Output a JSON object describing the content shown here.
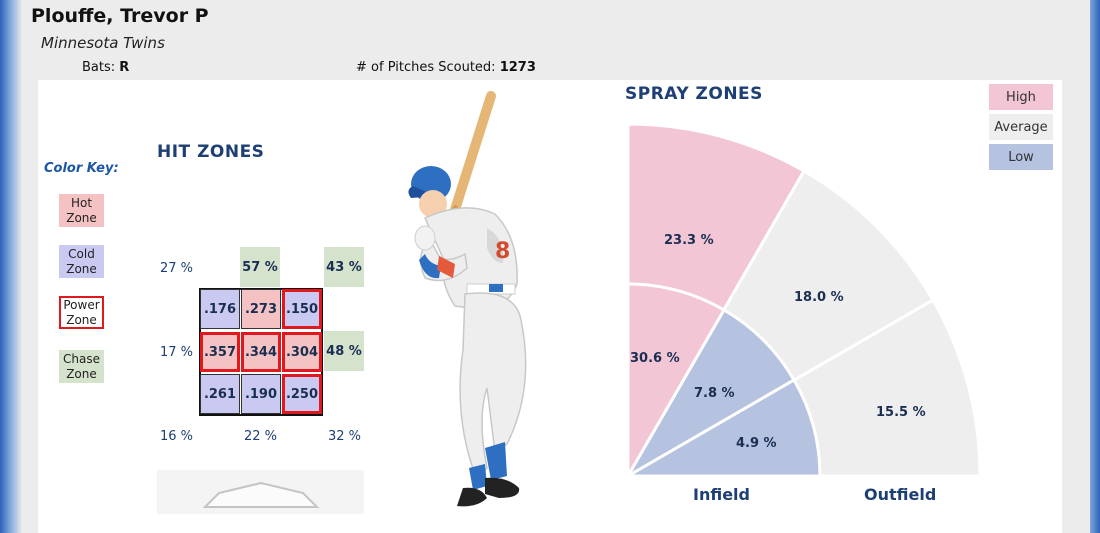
{
  "player": {
    "name": "Plouffe, Trevor P",
    "team": "Minnesota Twins",
    "bats_label": "Bats:",
    "bats_value": "R",
    "pitches_label": "# of Pitches Scouted:",
    "pitches_value": "1273"
  },
  "hit_zones": {
    "title": "HIT ZONES",
    "color_key_title": "Color Key:",
    "color_key": [
      {
        "line1": "Hot",
        "line2": "Zone",
        "color": "#f4c2c2"
      },
      {
        "line1": "Cold",
        "line2": "Zone",
        "color": "#c9c9f2"
      },
      {
        "line1": "Power",
        "line2": "Zone",
        "color": "#ffffff",
        "border": "#e0191f"
      },
      {
        "line1": "Chase",
        "line2": "Zone",
        "color": "#d5e3cc"
      }
    ],
    "grid": [
      [
        ".176",
        ".273",
        ".150"
      ],
      [
        ".357",
        ".344",
        ".304"
      ],
      [
        ".261",
        ".190",
        ".250"
      ]
    ],
    "grid_types": [
      [
        "cold",
        "hot",
        "cold-power"
      ],
      [
        "hot-power",
        "hot-power",
        "hot-power"
      ],
      [
        "cold",
        "cold",
        "cold-power"
      ]
    ],
    "top_pcts": [
      "27 %",
      "57 %",
      "43 %"
    ],
    "mid_pcts": [
      "17 %",
      "48 %"
    ],
    "bottom_pcts": [
      "16 %",
      "22 %",
      "32 %"
    ]
  },
  "spray_zones": {
    "title": "SPRAY ZONES",
    "legend": [
      {
        "label": "High",
        "color": "#f2c6d5"
      },
      {
        "label": "Average",
        "color": "#eeeeee"
      },
      {
        "label": "Low",
        "color": "#b5c2e0"
      }
    ],
    "zones": [
      {
        "label": "23.3 %",
        "level": "High"
      },
      {
        "label": "18.0 %",
        "level": "Average"
      },
      {
        "label": "15.5 %",
        "level": "Average"
      },
      {
        "label": "30.6 %",
        "level": "High"
      },
      {
        "label": "7.8 %",
        "level": "Low"
      },
      {
        "label": "4.9 %",
        "level": "Low"
      }
    ],
    "infield_label": "Infield",
    "outfield_label": "Outfield"
  }
}
